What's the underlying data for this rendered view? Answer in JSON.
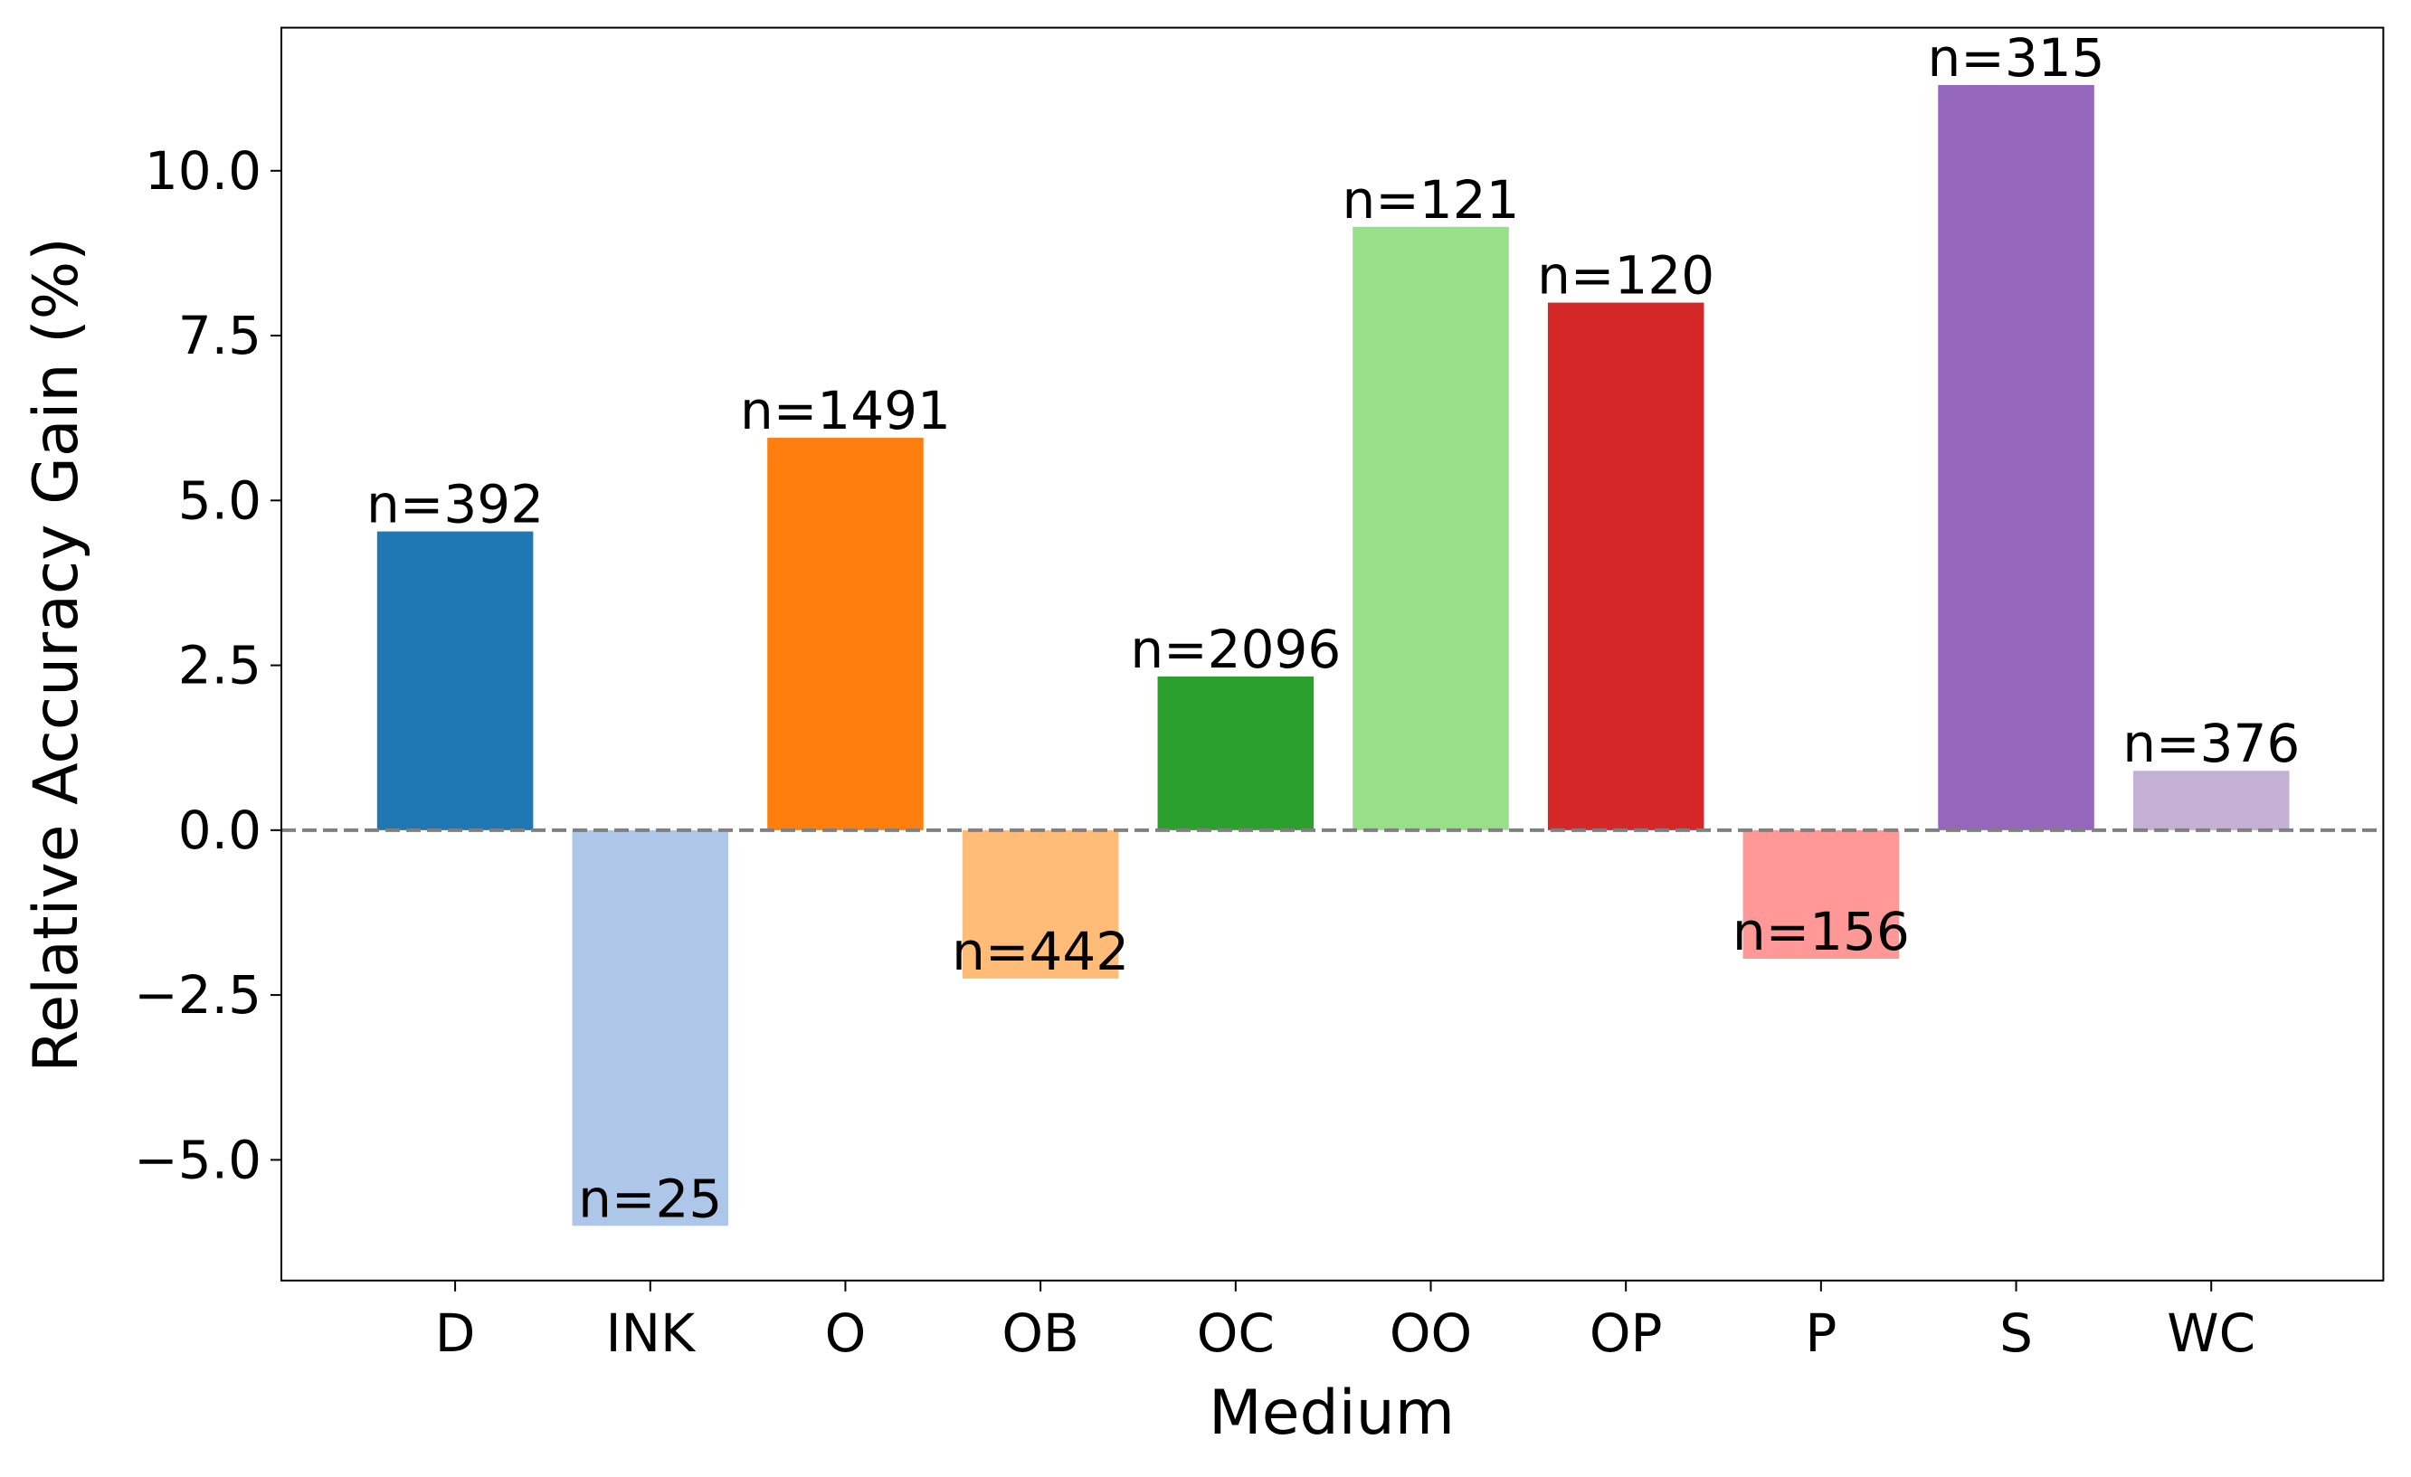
{
  "chart_data": {
    "type": "bar",
    "xlabel": "Medium",
    "ylabel": "Relative Accuracy Gain (%)",
    "categories": [
      "D",
      "INK",
      "O",
      "OB",
      "OC",
      "OO",
      "OP",
      "P",
      "S",
      "WC"
    ],
    "values": [
      4.53,
      -6.0,
      5.95,
      -2.25,
      2.33,
      9.15,
      8.0,
      -1.95,
      11.3,
      0.9
    ],
    "annotations": [
      "n=392",
      "n=25",
      "n=1491",
      "n=442",
      "n=2096",
      "n=121",
      "n=120",
      "n=156",
      "n=315",
      "n=376"
    ],
    "colors": [
      "#1f77b4",
      "#aec7e8",
      "#ff7f0e",
      "#ffbb78",
      "#2ca02c",
      "#98df8a",
      "#d62728",
      "#ff9896",
      "#9467bd",
      "#c5b0d5"
    ],
    "ylim": [
      -6.83,
      12.17
    ],
    "yticks": [
      {
        "value": -5.0,
        "label": "−5.0"
      },
      {
        "value": -2.5,
        "label": "−2.5"
      },
      {
        "value": 0,
        "label": "0.0"
      },
      2.5,
      {
        "value": 5.0,
        "label": "5.0"
      },
      7.5,
      {
        "value": 10.0,
        "label": "10.0"
      }
    ],
    "hline": {
      "value": 0,
      "color": "#808080",
      "style": "dashed"
    },
    "grid": false
  }
}
